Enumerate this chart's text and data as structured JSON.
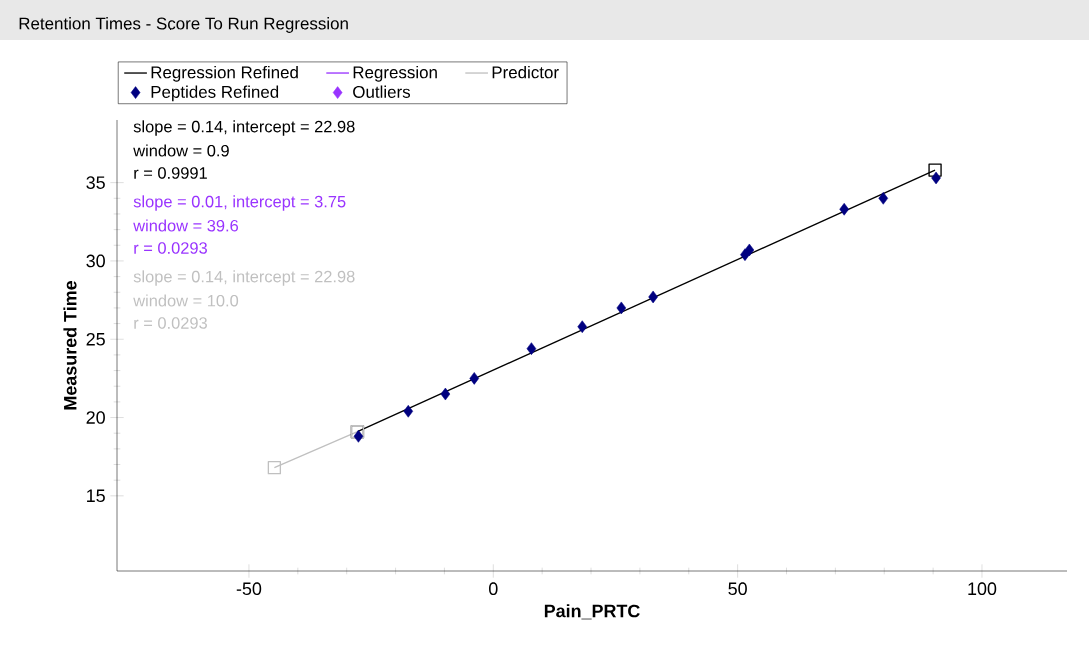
{
  "chart_data": {
    "type": "scatter",
    "title": "Retention Times - Score To Run Regression",
    "xlabel": "Pain_PRTC",
    "ylabel": "Measured Time",
    "xlim": [
      -77,
      117.4
    ],
    "ylim": [
      10.2,
      39
    ],
    "xticks": [
      -50,
      0,
      50,
      100
    ],
    "yticks": [
      15,
      20,
      25,
      30,
      35
    ],
    "legend": "top",
    "series": [
      {
        "name": "Regression Refined",
        "type": "line",
        "color": "#000000",
        "marker": "square",
        "x": [
          -27.8,
          90.4
        ],
        "values": [
          19.1,
          35.8
        ]
      },
      {
        "name": "Regression",
        "type": "line",
        "color": "#9933ff"
      },
      {
        "name": "Predictor",
        "type": "line",
        "color": "#c0c0c0",
        "marker": "square",
        "x": [
          -44.8,
          -27.8
        ],
        "values": [
          16.8,
          19.1
        ]
      },
      {
        "name": "Peptides Refined",
        "type": "scatter",
        "color": "#000080",
        "marker": "diamond",
        "x": [
          -27.6,
          -17.4,
          -9.8,
          -3.9,
          7.8,
          18.2,
          26.2,
          32.7,
          51.5,
          52.4,
          71.8,
          79.8,
          90.6
        ],
        "values": [
          18.8,
          20.4,
          21.5,
          22.5,
          24.4,
          25.8,
          27.0,
          27.7,
          30.4,
          30.7,
          33.3,
          34.0,
          35.3
        ]
      },
      {
        "name": "Outliers",
        "type": "scatter",
        "color": "#9933ff",
        "marker": "diamond"
      }
    ],
    "annotations": [
      "slope = 0.14, intercept = 22.98",
      "window = 0.9",
      "r = 0.9991",
      "slope = 0.01, intercept = 3.75",
      "window = 39.6",
      "r = 0.0293",
      "slope = 0.14, intercept = 22.98",
      "window = 10.0",
      "r = 0.0293"
    ]
  }
}
